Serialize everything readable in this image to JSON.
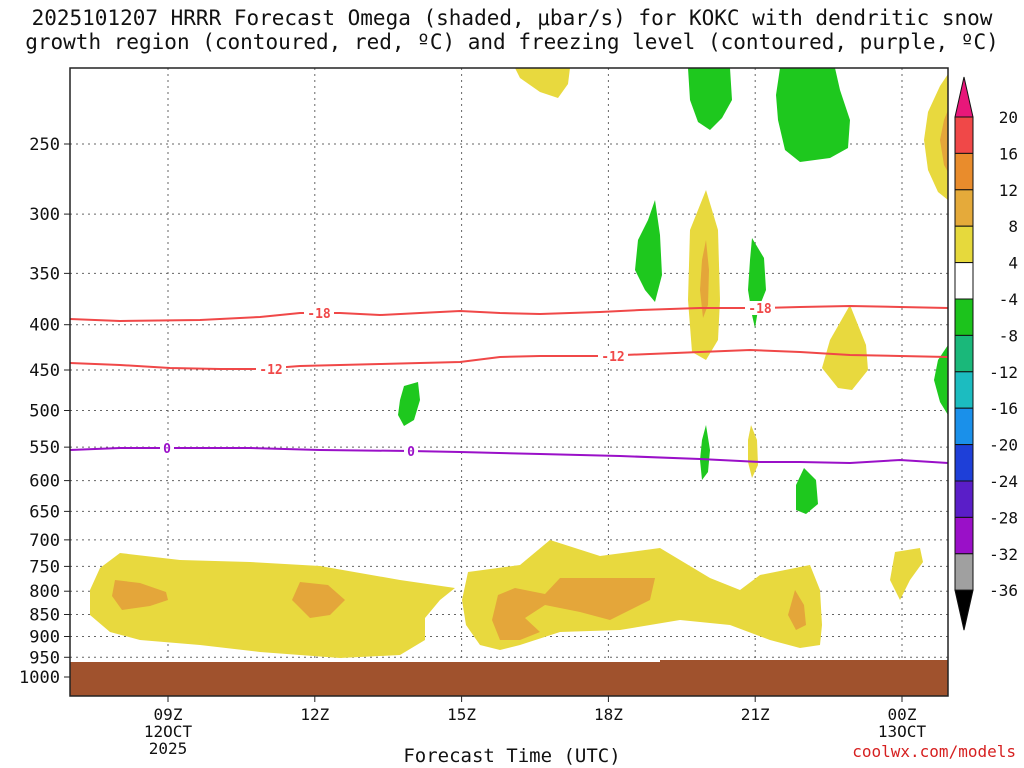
{
  "chart_data": {
    "type": "heatmap",
    "title_line1": "2025101207 HRRR Forecast Omega (shaded, μbar/s) for KOKC with dendritic snow",
    "title_line2": "growth region (contoured, red, ºC) and freezing level (contoured, purple, ºC)",
    "xlabel": "Forecast Time (UTC)",
    "credit": "coolwx.com/models",
    "x_ticks": [
      {
        "lines": [
          "09Z",
          "12OCT",
          "2025"
        ]
      },
      {
        "lines": [
          "12Z"
        ]
      },
      {
        "lines": [
          "15Z"
        ]
      },
      {
        "lines": [
          "18Z"
        ]
      },
      {
        "lines": [
          "21Z"
        ]
      },
      {
        "lines": [
          "00Z",
          "13OCT"
        ]
      }
    ],
    "y_ticks": [
      "250",
      "300",
      "350",
      "400",
      "450",
      "500",
      "550",
      "600",
      "650",
      "700",
      "750",
      "800",
      "850",
      "900",
      "950",
      "1000"
    ],
    "colorbar": {
      "labels": [
        "20",
        "16",
        "12",
        "8",
        "4",
        "-4",
        "-8",
        "-12",
        "-16",
        "-20",
        "-24",
        "-28",
        "-32",
        "-36"
      ],
      "colors": [
        "#e8177a",
        "#f04848",
        "#e98c2c",
        "#e5aa3a",
        "#e6d93c",
        "#ffffff",
        "#1cc31c",
        "#1ab87a",
        "#1cbcc0",
        "#1a90ea",
        "#1e3fd8",
        "#5a1ec8",
        "#9a10c8",
        "#a0a0a0",
        "#000000"
      ]
    },
    "red_contours": [
      {
        "label": "-18",
        "label2": "-18"
      },
      {
        "label": "-12",
        "label2": "-12"
      }
    ],
    "purple_contour": {
      "label": "0",
      "label2": "0"
    },
    "colors": {
      "ground": "#a0522d",
      "yellow": "#e8d93e",
      "orange": "#e4a63a",
      "green": "#1ec81e",
      "red_line": "#f04848",
      "purple_line": "#9a10c8"
    }
  }
}
